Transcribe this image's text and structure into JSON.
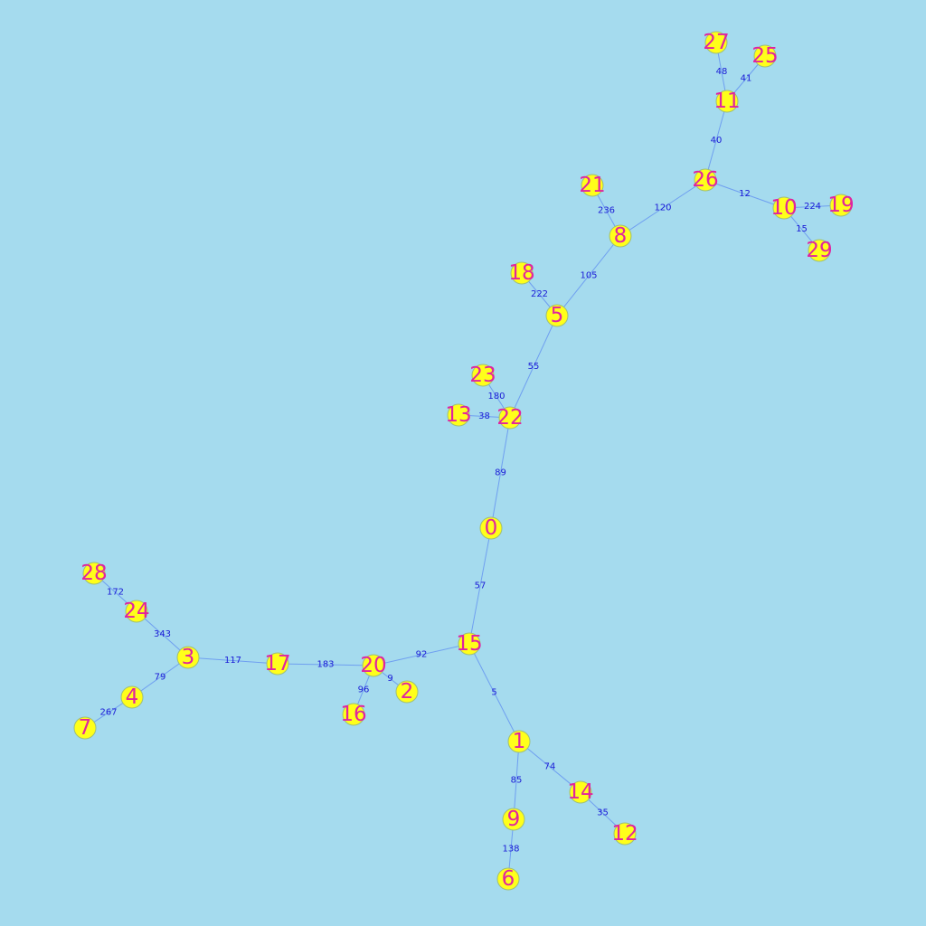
{
  "colors": {
    "background": "#a5dbee",
    "node_fill": "#ffff1a",
    "node_label": "#e0249f",
    "edge": "#6f9ff0",
    "edge_label": "#1a1ad6"
  },
  "nodes": [
    {
      "id": "0"
    },
    {
      "id": "1"
    },
    {
      "id": "2"
    },
    {
      "id": "3"
    },
    {
      "id": "4"
    },
    {
      "id": "5"
    },
    {
      "id": "6"
    },
    {
      "id": "7"
    },
    {
      "id": "8"
    },
    {
      "id": "9"
    },
    {
      "id": "10"
    },
    {
      "id": "11"
    },
    {
      "id": "12"
    },
    {
      "id": "13"
    },
    {
      "id": "14"
    },
    {
      "id": "15"
    },
    {
      "id": "16"
    },
    {
      "id": "17"
    },
    {
      "id": "18"
    },
    {
      "id": "19"
    },
    {
      "id": "20"
    },
    {
      "id": "21"
    },
    {
      "id": "22"
    },
    {
      "id": "23"
    },
    {
      "id": "24"
    },
    {
      "id": "25"
    },
    {
      "id": "26"
    },
    {
      "id": "27"
    },
    {
      "id": "28"
    },
    {
      "id": "29"
    }
  ],
  "edges": [
    {
      "source": "27",
      "target": "11",
      "weight": "48"
    },
    {
      "source": "25",
      "target": "11",
      "weight": "41"
    },
    {
      "source": "11",
      "target": "26",
      "weight": "40"
    },
    {
      "source": "26",
      "target": "8",
      "weight": "120"
    },
    {
      "source": "26",
      "target": "10",
      "weight": "12"
    },
    {
      "source": "10",
      "target": "19",
      "weight": "224"
    },
    {
      "source": "10",
      "target": "29",
      "weight": "15"
    },
    {
      "source": "21",
      "target": "8",
      "weight": "236"
    },
    {
      "source": "8",
      "target": "5",
      "weight": "105"
    },
    {
      "source": "18",
      "target": "5",
      "weight": "222"
    },
    {
      "source": "5",
      "target": "22",
      "weight": "55"
    },
    {
      "source": "23",
      "target": "22",
      "weight": "180"
    },
    {
      "source": "13",
      "target": "22",
      "weight": "38"
    },
    {
      "source": "22",
      "target": "0",
      "weight": "89"
    },
    {
      "source": "0",
      "target": "15",
      "weight": "57"
    },
    {
      "source": "15",
      "target": "20",
      "weight": "92"
    },
    {
      "source": "15",
      "target": "1",
      "weight": "5"
    },
    {
      "source": "20",
      "target": "17",
      "weight": "183"
    },
    {
      "source": "20",
      "target": "2",
      "weight": "9"
    },
    {
      "source": "20",
      "target": "16",
      "weight": "96"
    },
    {
      "source": "17",
      "target": "3",
      "weight": "117"
    },
    {
      "source": "3",
      "target": "24",
      "weight": "343"
    },
    {
      "source": "24",
      "target": "28",
      "weight": "172"
    },
    {
      "source": "3",
      "target": "4",
      "weight": "79"
    },
    {
      "source": "4",
      "target": "7",
      "weight": "267"
    },
    {
      "source": "1",
      "target": "9",
      "weight": "85"
    },
    {
      "source": "1",
      "target": "14",
      "weight": "74"
    },
    {
      "source": "9",
      "target": "6",
      "weight": "138"
    },
    {
      "source": "14",
      "target": "12",
      "weight": "35"
    }
  ]
}
